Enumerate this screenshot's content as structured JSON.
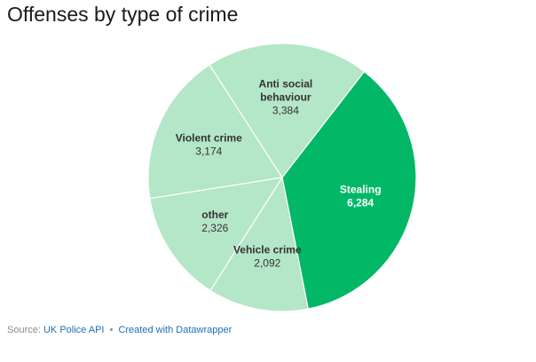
{
  "title": "Offenses by type of crime",
  "chart_data": {
    "type": "pie",
    "title": "Offenses by type of crime",
    "slices": [
      {
        "name": "Stealing",
        "value": 6284,
        "value_label": "6,284",
        "label_lines": [
          "Stealing"
        ],
        "color": "#02b866",
        "label_color": "#ffffff"
      },
      {
        "name": "Vehicle crime",
        "value": 2092,
        "value_label": "2,092",
        "label_lines": [
          "Vehicle crime"
        ],
        "color": "#b4e6c8",
        "label_color": "#333333"
      },
      {
        "name": "other",
        "value": 2326,
        "value_label": "2,326",
        "label_lines": [
          "other"
        ],
        "color": "#b4e6c8",
        "label_color": "#333333"
      },
      {
        "name": "Violent crime",
        "value": 3174,
        "value_label": "3,174",
        "label_lines": [
          "Violent crime"
        ],
        "color": "#b4e6c8",
        "label_color": "#333333"
      },
      {
        "name": "Anti social behaviour",
        "value": 3384,
        "value_label": "3,384",
        "label_lines": [
          "Anti social",
          "behaviour"
        ],
        "color": "#b4e6c8",
        "label_color": "#333333"
      }
    ]
  },
  "footer": {
    "source_prefix": "Source:",
    "source_name": "UK Police API",
    "separator": "•",
    "credit": "Created with Datawrapper"
  }
}
